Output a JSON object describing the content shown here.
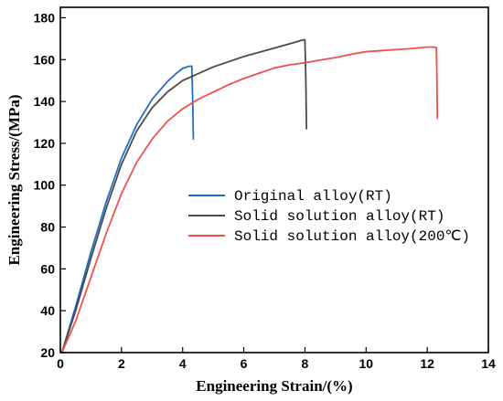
{
  "chart_data": {
    "type": "line",
    "title": "",
    "xlabel": "Engineering Strain/(%)",
    "ylabel": "Engineering Stress/(MPa)",
    "xlim": [
      0,
      14
    ],
    "ylim": [
      20,
      185
    ],
    "xticks": [
      0,
      2,
      4,
      6,
      8,
      10,
      12,
      14
    ],
    "yticks": [
      20,
      40,
      60,
      80,
      100,
      120,
      140,
      160,
      180
    ],
    "grid": false,
    "legend_position": "center-right",
    "series": [
      {
        "name": "Original alloy(RT)",
        "color": "#1f6fc4",
        "points": [
          [
            0.05,
            20
          ],
          [
            0.5,
            42
          ],
          [
            1.0,
            68
          ],
          [
            1.5,
            92
          ],
          [
            2.0,
            113
          ],
          [
            2.5,
            129
          ],
          [
            3.0,
            141
          ],
          [
            3.5,
            149.5
          ],
          [
            3.8,
            153.5
          ],
          [
            4.0,
            155.8
          ],
          [
            4.2,
            156.8
          ],
          [
            4.3,
            156.9
          ],
          [
            4.33,
            140
          ],
          [
            4.35,
            122
          ]
        ]
      },
      {
        "name": "Solid solution alloy(RT)",
        "color": "#4a4a4a",
        "points": [
          [
            0.05,
            20
          ],
          [
            0.5,
            40
          ],
          [
            1.0,
            65
          ],
          [
            1.5,
            89
          ],
          [
            2.0,
            110
          ],
          [
            2.5,
            126
          ],
          [
            3.0,
            137
          ],
          [
            3.5,
            144.5
          ],
          [
            4.0,
            150
          ],
          [
            5.0,
            156.5
          ],
          [
            6.0,
            161.5
          ],
          [
            7.0,
            165.5
          ],
          [
            7.6,
            168
          ],
          [
            7.9,
            169.3
          ],
          [
            8.0,
            169.5
          ],
          [
            8.03,
            150
          ],
          [
            8.05,
            127
          ]
        ]
      },
      {
        "name": "Solid solution alloy(200℃)",
        "color": "#f0504a",
        "points": [
          [
            0.05,
            20
          ],
          [
            0.5,
            35
          ],
          [
            1.0,
            56
          ],
          [
            1.5,
            77
          ],
          [
            2.0,
            96
          ],
          [
            2.5,
            111
          ],
          [
            3.0,
            122
          ],
          [
            3.5,
            130.5
          ],
          [
            4.0,
            136.5
          ],
          [
            4.5,
            141
          ],
          [
            5.0,
            144.5
          ],
          [
            5.5,
            148
          ],
          [
            6.0,
            151
          ],
          [
            6.5,
            153.5
          ],
          [
            7.0,
            156
          ],
          [
            7.5,
            157.5
          ],
          [
            8.0,
            158.5
          ],
          [
            8.5,
            159.8
          ],
          [
            9.0,
            161
          ],
          [
            9.5,
            162.5
          ],
          [
            10.0,
            163.8
          ],
          [
            10.5,
            164.3
          ],
          [
            11.0,
            164.8
          ],
          [
            11.5,
            165.3
          ],
          [
            12.0,
            166
          ],
          [
            12.2,
            166
          ],
          [
            12.3,
            165.8
          ],
          [
            12.32,
            150
          ],
          [
            12.33,
            132
          ]
        ]
      }
    ]
  }
}
